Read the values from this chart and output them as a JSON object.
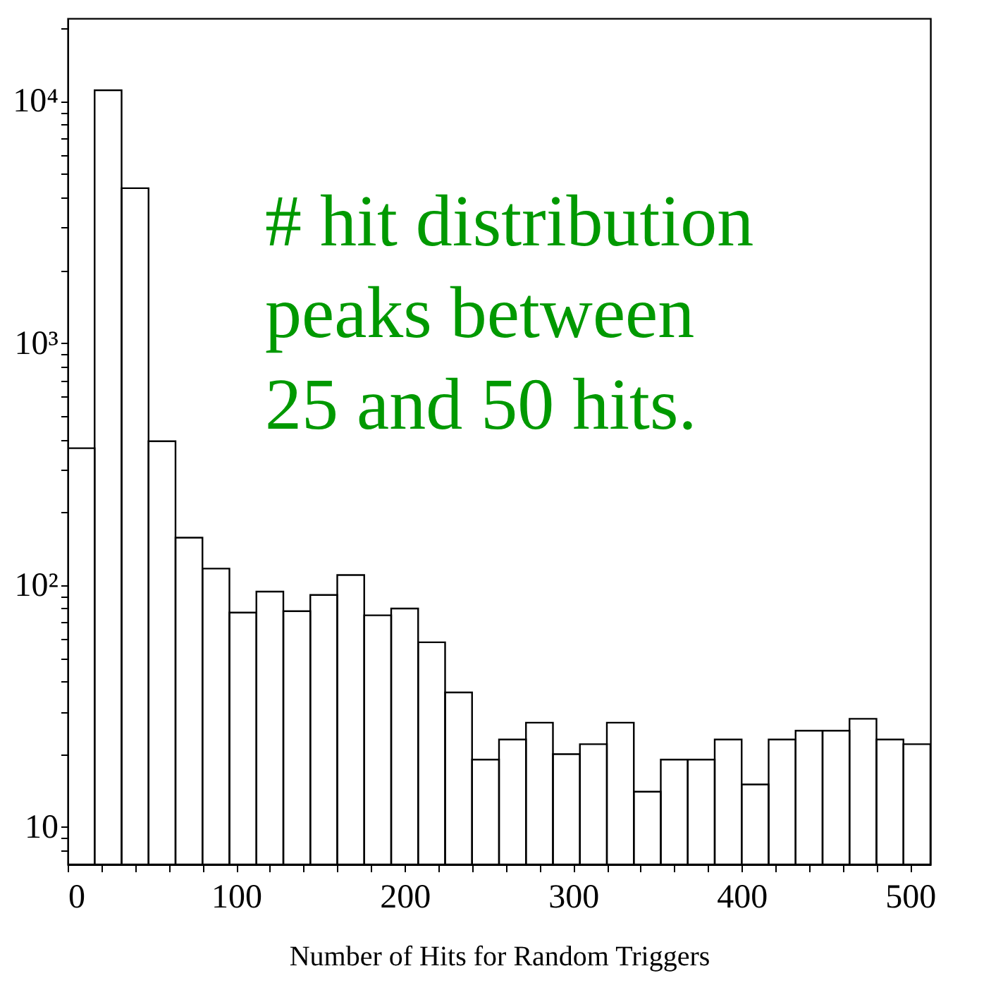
{
  "chart_data": {
    "type": "histogram",
    "xlabel": "Number of Hits for Random Triggers",
    "bins": [
      0,
      16,
      32,
      48,
      64,
      80,
      96,
      112,
      128,
      144,
      160,
      176,
      192,
      208,
      224,
      240,
      256,
      272,
      288,
      304,
      320,
      336,
      352,
      368,
      384,
      400,
      416,
      432,
      448,
      464,
      480,
      496,
      512
    ],
    "values": [
      368,
      11100,
      4370,
      393,
      157,
      117,
      77,
      94,
      78,
      91,
      110,
      75,
      80,
      58,
      36,
      19,
      23,
      27,
      20,
      22,
      27,
      14,
      19,
      19,
      23,
      15,
      23,
      25,
      25,
      28,
      23,
      22
    ],
    "color": "#000000",
    "xlim": [
      0,
      512
    ],
    "xticks": [
      0,
      {
        "value": 20,
        "label": null
      },
      {
        "value": 40,
        "label": null
      },
      {
        "value": 60,
        "label": null
      },
      {
        "value": 80,
        "label": null
      },
      100,
      {
        "value": 120,
        "label": null
      },
      {
        "value": 140,
        "label": null
      },
      {
        "value": 160,
        "label": null
      },
      {
        "value": 180,
        "label": null
      },
      200,
      {
        "value": 220,
        "label": null
      },
      {
        "value": 240,
        "label": null
      },
      {
        "value": 260,
        "label": null
      },
      {
        "value": 280,
        "label": null
      },
      300,
      {
        "value": 320,
        "label": null
      },
      {
        "value": 340,
        "label": null
      },
      {
        "value": 360,
        "label": null
      },
      {
        "value": 380,
        "label": null
      },
      400,
      {
        "value": 420,
        "label": null
      },
      {
        "value": 440,
        "label": null
      },
      {
        "value": 460,
        "label": null
      },
      {
        "value": 480,
        "label": null
      },
      500
    ],
    "ylim": [
      7,
      22000
    ],
    "yticks": [
      {
        "value": 8,
        "label": null
      },
      {
        "value": 9,
        "label": null
      },
      10,
      {
        "value": 20,
        "label": null
      },
      {
        "value": 30,
        "label": null
      },
      {
        "value": 40,
        "label": null
      },
      {
        "value": 50,
        "label": null
      },
      {
        "value": 60,
        "label": null
      },
      {
        "value": 70,
        "label": null
      },
      {
        "value": 80,
        "label": null
      },
      {
        "value": 90,
        "label": null
      },
      {
        "value": 100,
        "label": "10²"
      },
      {
        "value": 200,
        "label": null
      },
      {
        "value": 300,
        "label": null
      },
      {
        "value": 400,
        "label": null
      },
      {
        "value": 500,
        "label": null
      },
      {
        "value": 600,
        "label": null
      },
      {
        "value": 700,
        "label": null
      },
      {
        "value": 800,
        "label": null
      },
      {
        "value": 900,
        "label": null
      },
      {
        "value": 1000,
        "label": "10³"
      },
      {
        "value": 2000,
        "label": null
      },
      {
        "value": 3000,
        "label": null
      },
      {
        "value": 4000,
        "label": null
      },
      {
        "value": 5000,
        "label": null
      },
      {
        "value": 6000,
        "label": null
      },
      {
        "value": 7000,
        "label": null
      },
      {
        "value": 8000,
        "label": null
      },
      {
        "value": 9000,
        "label": null
      },
      {
        "value": 10000,
        "label": "10⁴"
      },
      {
        "value": 20000,
        "label": null
      }
    ],
    "log": true,
    "grid": false,
    "annotations": [
      "# hit distribution\npeaks between\n25 and 50 hits."
    ]
  }
}
